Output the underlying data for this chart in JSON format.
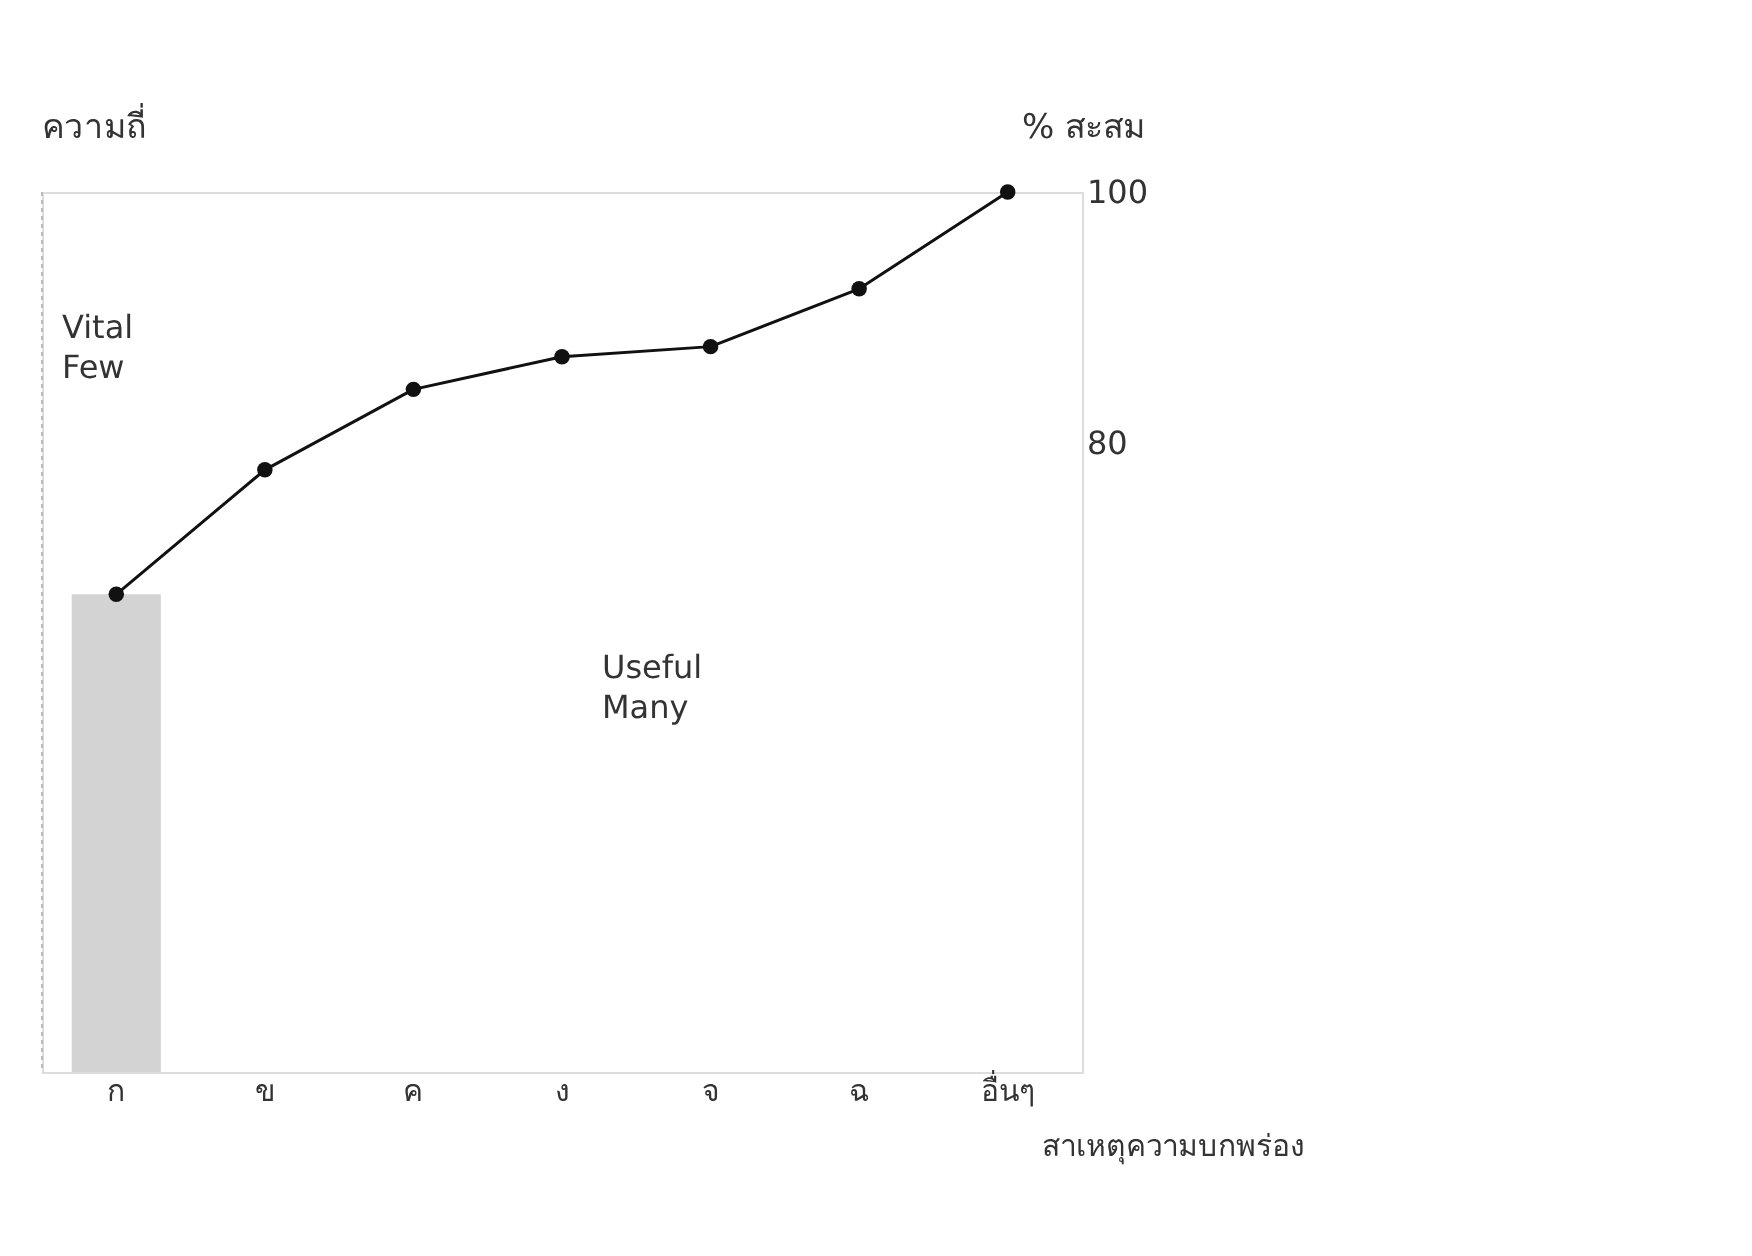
{
  "chart_data": {
    "type": "line",
    "ylabel": "ความถี่",
    "y2label": "% สะสม",
    "xlabel": "สาเหตุความบกพร่อง",
    "categories": [
      "ก",
      "ข",
      "ค",
      "ง",
      "จ",
      "ฉ",
      "อื่นๆ"
    ],
    "series": [
      {
        "type": "bar",
        "color": "#c8c8c8",
        "values": [
          68,
          null,
          null,
          null,
          null,
          null,
          null
        ],
        "axis": "y2"
      },
      {
        "color": "#111111",
        "values": [
          68,
          77.9,
          84.3,
          86.9,
          87.7,
          92.3,
          100
        ],
        "axis": "y2",
        "marker": "circle"
      }
    ],
    "y2lim": [
      30,
      100
    ],
    "y2ticks": [
      80,
      100
    ],
    "annotations": [
      "Vital Few",
      "Useful Many"
    ],
    "grid": false
  }
}
